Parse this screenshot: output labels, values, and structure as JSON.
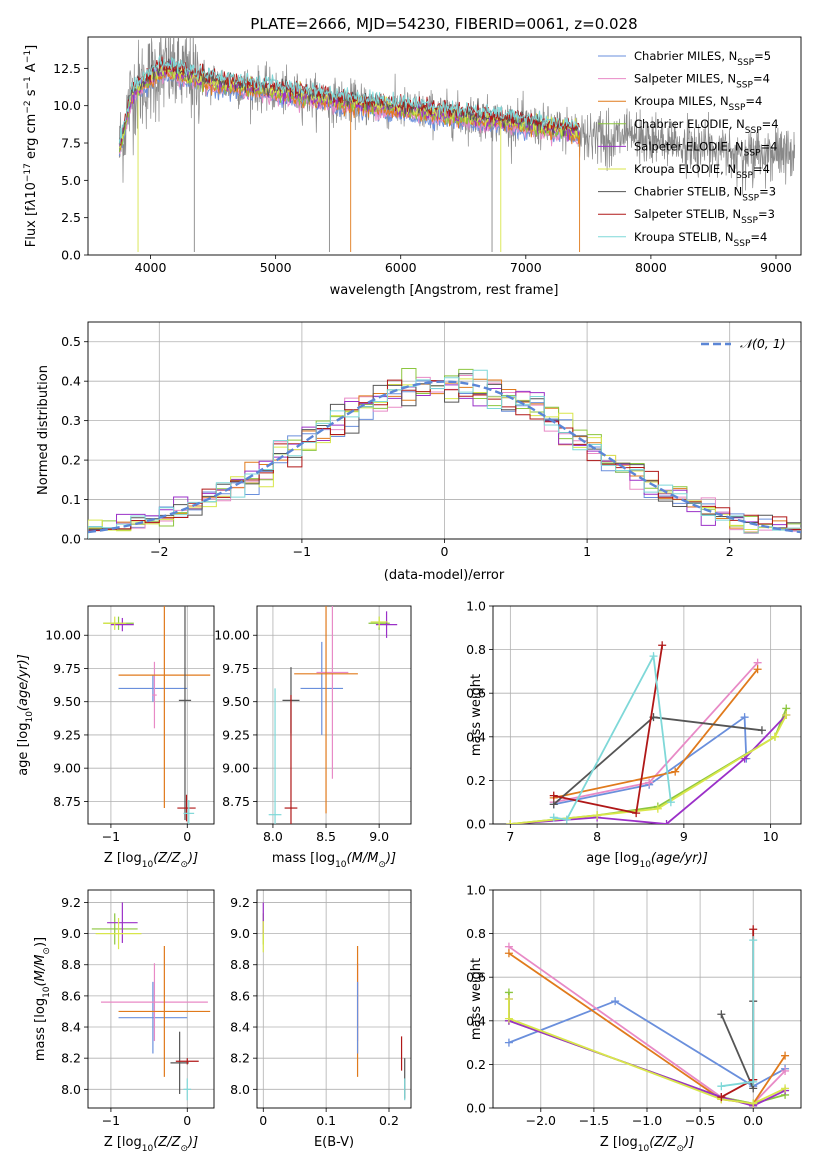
{
  "figure": {
    "title": "PLATE=2666, MJD=54230, FIBERID=0061, z=0.028"
  },
  "series_colors": {
    "Chabrier MILES": "#6a8fdc",
    "Salpeter MILES": "#e88ac6",
    "Kroupa MILES": "#e07a1c",
    "Chabrier ELODIE": "#8cc63f",
    "Salpeter ELODIE": "#9b30c8",
    "Kroupa ELODIE": "#d8e64a",
    "Chabrier STELIB": "#555555",
    "Salpeter STELIB": "#b01818",
    "Kroupa STELIB": "#7fd8d8"
  },
  "chart_data": [
    {
      "id": "spectrum",
      "type": "line",
      "title": "PLATE=2666, MJD=54230, FIBERID=0061, z=0.028",
      "xlabel": "wavelength [Angstrom, rest frame]",
      "ylabel_parts": [
        "Flux [f",
        "λ",
        "10",
        "−17",
        " erg cm",
        "−2",
        " s",
        "−1",
        " A",
        "−1",
        "]"
      ],
      "xlim": [
        3500,
        9200
      ],
      "ylim": [
        0,
        14.6
      ],
      "xticks": [
        4000,
        5000,
        6000,
        7000,
        8000,
        9000
      ],
      "yticks": [
        0.0,
        2.5,
        5.0,
        7.5,
        10.0,
        12.5
      ],
      "grid": false,
      "legend_position": "upper-right",
      "legend": [
        {
          "label": "Chabrier MILES, N",
          "sub": "SSP",
          "suffix": "=5",
          "series": "Chabrier MILES"
        },
        {
          "label": "Salpeter MILES, N",
          "sub": "SSP",
          "suffix": "=4",
          "series": "Salpeter MILES"
        },
        {
          "label": "Kroupa MILES, N",
          "sub": "SSP",
          "suffix": "=4",
          "series": "Kroupa MILES"
        },
        {
          "label": "Chabrier ELODIE, N",
          "sub": "SSP",
          "suffix": "=4",
          "series": "Chabrier ELODIE"
        },
        {
          "label": "Salpeter ELODIE, N",
          "sub": "SSP",
          "suffix": "=4",
          "series": "Salpeter ELODIE"
        },
        {
          "label": "Kroupa ELODIE, N",
          "sub": "SSP",
          "suffix": "=4",
          "series": "Kroupa ELODIE"
        },
        {
          "label": "Chabrier STELIB, N",
          "sub": "SSP",
          "suffix": "=3",
          "series": "Chabrier STELIB"
        },
        {
          "label": "Salpeter STELIB, N",
          "sub": "SSP",
          "suffix": "=3",
          "series": "Salpeter STELIB"
        },
        {
          "label": "Kroupa STELIB, N",
          "sub": "SSP",
          "suffix": "=4",
          "series": "Kroupa STELIB"
        }
      ],
      "continuum": {
        "x": [
          3750,
          3850,
          3950,
          4050,
          4150,
          4300,
          4500,
          4700,
          4900,
          5100,
          5300,
          5500,
          5700,
          5900,
          6100,
          6300,
          6500,
          6700,
          6900,
          7100,
          7300,
          7500,
          7700,
          7900,
          8100,
          8300,
          8500,
          8700,
          8900,
          9150
        ],
        "y": [
          7.0,
          10.8,
          11.5,
          12.2,
          12.4,
          12.0,
          11.6,
          11.3,
          11.1,
          10.8,
          10.6,
          10.3,
          10.1,
          9.9,
          9.7,
          9.5,
          9.3,
          9.1,
          8.9,
          8.6,
          8.4,
          8.1,
          7.9,
          7.7,
          7.5,
          7.3,
          7.1,
          6.9,
          6.8,
          6.7
        ]
      },
      "observed_range": [
        3750,
        9150
      ],
      "model_range": [
        3750,
        7430
      ]
    },
    {
      "id": "residuals",
      "type": "histogram",
      "xlabel": "(data-model)/error",
      "ylabel": "Normed distribution",
      "xlim": [
        -2.5,
        2.5
      ],
      "ylim": [
        0,
        0.55
      ],
      "xticks": [
        -2,
        -1,
        0,
        1,
        2
      ],
      "yticks": [
        0.0,
        0.1,
        0.2,
        0.3,
        0.4,
        0.5
      ],
      "grid": true,
      "legend_position": "upper-right",
      "reference_curve": {
        "name": "𝒩(0, 1)",
        "mean": 0,
        "sigma": 1
      },
      "bin_width": 0.1
    },
    {
      "id": "age_vs_Z",
      "type": "errorbar",
      "xlabel_parts": [
        "Z [log",
        "10",
        "(Z/Z",
        "⊙",
        ")]"
      ],
      "ylabel_parts": [
        "age  [log",
        "10",
        "(age/yr)]"
      ],
      "xlim": [
        -1.3,
        0.35
      ],
      "ylim": [
        8.58,
        10.22
      ],
      "xticks": [
        -1,
        0
      ],
      "yticks": [
        8.75,
        9.0,
        9.25,
        9.5,
        9.75,
        10.0
      ],
      "grid": true,
      "points": [
        {
          "series": "Chabrier MILES",
          "x": -0.45,
          "xerr": 0.45,
          "y": 9.6,
          "yerr": 0.1
        },
        {
          "series": "Salpeter MILES",
          "x": -0.43,
          "xerr": 0.03,
          "y": 9.55,
          "yerr": 0.25
        },
        {
          "series": "Kroupa MILES",
          "x": -0.3,
          "xerr": 0.6,
          "y": 9.7,
          "yerr": 1.0
        },
        {
          "series": "Chabrier ELODIE",
          "x": -0.9,
          "xerr": 0.2,
          "y": 10.09,
          "yerr": 0.05
        },
        {
          "series": "Salpeter ELODIE",
          "x": -0.85,
          "xerr": 0.15,
          "y": 10.08,
          "yerr": 0.05
        },
        {
          "series": "Kroupa ELODIE",
          "x": -0.95,
          "xerr": 0.15,
          "y": 10.09,
          "yerr": 0.05
        },
        {
          "series": "Chabrier STELIB",
          "x": -0.03,
          "xerr": 0.08,
          "y": 9.51,
          "yerr": 0.9
        },
        {
          "series": "Salpeter STELIB",
          "x": -0.01,
          "xerr": 0.12,
          "y": 8.7,
          "yerr": 0.1
        },
        {
          "series": "Kroupa STELIB",
          "x": 0.02,
          "xerr": 0.07,
          "y": 8.66,
          "yerr": 0.1
        }
      ]
    },
    {
      "id": "age_vs_mass",
      "type": "errorbar",
      "xlabel_parts": [
        "mass [log",
        "10",
        "(M/M",
        "⊙",
        ")]"
      ],
      "xlim": [
        7.85,
        9.3
      ],
      "ylim": [
        8.58,
        10.22
      ],
      "xticks": [
        8.0,
        8.5,
        9.0
      ],
      "yticks": [
        8.75,
        9.0,
        9.25,
        9.5,
        9.75,
        10.0
      ],
      "grid": true,
      "points": [
        {
          "series": "Chabrier MILES",
          "x": 8.46,
          "xerr": 0.2,
          "y": 9.6,
          "yerr": 0.35
        },
        {
          "series": "Salpeter MILES",
          "x": 8.56,
          "xerr": 0.15,
          "y": 9.72,
          "yerr": 0.8
        },
        {
          "series": "Kroupa MILES",
          "x": 8.5,
          "xerr": 0.3,
          "y": 9.71,
          "yerr": 1.05
        },
        {
          "series": "Chabrier ELODIE",
          "x": 9.0,
          "xerr": 0.1,
          "y": 10.09,
          "yerr": 0.05
        },
        {
          "series": "Salpeter ELODIE",
          "x": 9.07,
          "xerr": 0.1,
          "y": 10.08,
          "yerr": 0.1
        },
        {
          "series": "Kroupa ELODIE",
          "x": 9.0,
          "xerr": 0.08,
          "y": 10.1,
          "yerr": 0.04
        },
        {
          "series": "Chabrier STELIB",
          "x": 8.17,
          "xerr": 0.08,
          "y": 9.51,
          "yerr": 0.25
        },
        {
          "series": "Salpeter STELIB",
          "x": 8.17,
          "xerr": 0.06,
          "y": 8.7,
          "yerr": 0.85
        },
        {
          "series": "Kroupa STELIB",
          "x": 8.02,
          "xerr": 0.06,
          "y": 8.65,
          "yerr": 0.95
        }
      ]
    },
    {
      "id": "weight_vs_age",
      "type": "line",
      "xlabel_parts": [
        "age  [log",
        "10",
        "(age/yr)]"
      ],
      "ylabel": "mass weight",
      "xlim": [
        6.8,
        10.35
      ],
      "ylim": [
        0,
        1.0
      ],
      "xticks": [
        7,
        8,
        9,
        10
      ],
      "yticks": [
        0.0,
        0.2,
        0.4,
        0.6,
        0.8,
        1.0
      ],
      "grid": true,
      "series": [
        {
          "name": "Chabrier MILES",
          "x": [
            7.5,
            8.6,
            9.7,
            9.72
          ],
          "y": [
            0.09,
            0.18,
            0.49,
            0.3
          ]
        },
        {
          "name": "Salpeter MILES",
          "x": [
            7.5,
            8.6,
            9.85
          ],
          "y": [
            0.1,
            0.19,
            0.74
          ]
        },
        {
          "name": "Kroupa MILES",
          "x": [
            7.5,
            8.9,
            9.85
          ],
          "y": [
            0.12,
            0.24,
            0.71
          ]
        },
        {
          "name": "Chabrier ELODIE",
          "x": [
            7.0,
            8.0,
            8.7,
            10.05,
            10.18
          ],
          "y": [
            0.0,
            0.04,
            0.08,
            0.4,
            0.53
          ]
        },
        {
          "name": "Salpeter ELODIE",
          "x": [
            7.0,
            8.0,
            8.8,
            9.7,
            10.18
          ],
          "y": [
            0.0,
            0.03,
            0.0,
            0.3,
            0.5
          ]
        },
        {
          "name": "Kroupa ELODIE",
          "x": [
            7.0,
            8.0,
            8.7,
            10.05,
            10.18
          ],
          "y": [
            0.0,
            0.04,
            0.07,
            0.4,
            0.5
          ]
        },
        {
          "name": "Chabrier STELIB",
          "x": [
            7.5,
            8.65,
            9.9
          ],
          "y": [
            0.09,
            0.49,
            0.43
          ]
        },
        {
          "name": "Salpeter STELIB",
          "x": [
            7.5,
            8.45,
            8.75
          ],
          "y": [
            0.13,
            0.05,
            0.82
          ]
        },
        {
          "name": "Kroupa STELIB",
          "x": [
            7.5,
            7.65,
            8.65,
            8.85
          ],
          "y": [
            0.03,
            0.02,
            0.77,
            0.1
          ]
        }
      ]
    },
    {
      "id": "mass_vs_Z",
      "type": "errorbar",
      "xlabel_parts": [
        "Z [log",
        "10",
        "(Z/Z",
        "⊙",
        ")]"
      ],
      "ylabel_parts": [
        "mass [log",
        "10",
        "(M/M",
        "⊙",
        ")]"
      ],
      "xlim": [
        -1.3,
        0.35
      ],
      "ylim": [
        7.88,
        9.28
      ],
      "xticks": [
        -1,
        0
      ],
      "yticks": [
        8.0,
        8.2,
        8.4,
        8.6,
        8.8,
        9.0,
        9.2
      ],
      "grid": true,
      "points": [
        {
          "series": "Chabrier MILES",
          "x": -0.45,
          "xerr": 0.45,
          "y": 8.46,
          "yerr": 0.23
        },
        {
          "series": "Salpeter MILES",
          "x": -0.43,
          "xerr": 0.7,
          "y": 8.56,
          "yerr": 0.25
        },
        {
          "series": "Kroupa MILES",
          "x": -0.3,
          "xerr": 0.6,
          "y": 8.5,
          "yerr": 0.42
        },
        {
          "series": "Chabrier ELODIE",
          "x": -0.95,
          "xerr": 0.3,
          "y": 9.03,
          "yerr": 0.1
        },
        {
          "series": "Salpeter ELODIE",
          "x": -0.85,
          "xerr": 0.2,
          "y": 9.07,
          "yerr": 0.13
        },
        {
          "series": "Kroupa ELODIE",
          "x": -0.9,
          "xerr": 0.3,
          "y": 9.0,
          "yerr": 0.1
        },
        {
          "series": "Chabrier STELIB",
          "x": -0.1,
          "xerr": 0.12,
          "y": 8.17,
          "yerr": 0.2
        },
        {
          "series": "Salpeter STELIB",
          "x": 0.0,
          "xerr": 0.15,
          "y": 8.18,
          "yerr": 0.02
        },
        {
          "series": "Kroupa STELIB",
          "x": 0.0,
          "xerr": 0.05,
          "y": 8.0,
          "yerr": 0.07
        }
      ]
    },
    {
      "id": "mass_vs_EBV",
      "type": "errorbar",
      "xlabel": "E(B-V)",
      "xlim": [
        -0.01,
        0.235
      ],
      "ylim": [
        7.88,
        9.28
      ],
      "xticks": [
        0.0,
        0.1,
        0.2
      ],
      "yticks": [
        8.0,
        8.2,
        8.4,
        8.6,
        8.8,
        9.0,
        9.2
      ],
      "grid": true,
      "points": [
        {
          "series": "Chabrier ELODIE",
          "x": 0.0,
          "xerr": 0.0,
          "y": 9.03,
          "yerr": 0.1
        },
        {
          "series": "Salpeter ELODIE",
          "x": 0.0,
          "xerr": 0.0,
          "y": 9.1,
          "yerr": 0.1
        },
        {
          "series": "Kroupa ELODIE",
          "x": 0.0,
          "xerr": 0.0,
          "y": 8.98,
          "yerr": 0.1
        },
        {
          "series": "Salpeter MILES",
          "x": 0.15,
          "xerr": 0.0,
          "y": 8.56,
          "yerr": 0.25
        },
        {
          "series": "Kroupa MILES",
          "x": 0.15,
          "xerr": 0.0,
          "y": 8.5,
          "yerr": 0.42
        },
        {
          "series": "Chabrier MILES",
          "x": 0.15,
          "xerr": 0.0,
          "y": 8.46,
          "yerr": 0.23
        },
        {
          "series": "Salpeter STELIB",
          "x": 0.22,
          "xerr": 0.0,
          "y": 8.23,
          "yerr": 0.11
        },
        {
          "series": "Chabrier STELIB",
          "x": 0.225,
          "xerr": 0.0,
          "y": 8.07,
          "yerr": 0.13
        },
        {
          "series": "Kroupa STELIB",
          "x": 0.225,
          "xerr": 0.0,
          "y": 8.0,
          "yerr": 0.07
        }
      ]
    },
    {
      "id": "weight_vs_Z",
      "type": "line",
      "xlabel_parts": [
        "Z [log",
        "10",
        "(Z/Z",
        "⊙",
        ")]"
      ],
      "ylabel": "mass weight",
      "xlim": [
        -2.45,
        0.45
      ],
      "ylim": [
        0,
        1.0
      ],
      "xticks": [
        -2.0,
        -1.5,
        -1.0,
        -0.5,
        0.0
      ],
      "yticks": [
        0.0,
        0.2,
        0.4,
        0.6,
        0.8,
        1.0
      ],
      "grid": true,
      "series": [
        {
          "name": "Chabrier MILES",
          "x": [
            -2.3,
            -1.3,
            0.0,
            0.3
          ],
          "y": [
            0.3,
            0.49,
            0.1,
            0.18
          ]
        },
        {
          "name": "Salpeter MILES",
          "x": [
            -2.3,
            -0.3,
            0.0,
            0.3
          ],
          "y": [
            0.74,
            0.05,
            0.02,
            0.17
          ]
        },
        {
          "name": "Kroupa MILES",
          "x": [
            -2.3,
            -0.3,
            0.0,
            0.3
          ],
          "y": [
            0.71,
            0.04,
            0.02,
            0.24
          ]
        },
        {
          "name": "Chabrier ELODIE",
          "x": [
            -2.3,
            -2.3,
            -0.3,
            0.0,
            0.3
          ],
          "y": [
            0.53,
            0.4,
            0.05,
            0.02,
            0.06
          ]
        },
        {
          "name": "Salpeter ELODIE",
          "x": [
            -2.3,
            -2.3,
            -0.3,
            0.0,
            0.3
          ],
          "y": [
            0.5,
            0.4,
            0.05,
            0.01,
            0.08
          ]
        },
        {
          "name": "Kroupa ELODIE",
          "x": [
            -2.3,
            -2.3,
            -0.3,
            0.0,
            0.3
          ],
          "y": [
            0.5,
            0.41,
            0.04,
            0.02,
            0.09
          ]
        },
        {
          "name": "Chabrier STELIB",
          "x": [
            -0.3,
            0.0,
            0.0,
            0.0
          ],
          "y": [
            0.43,
            0.09,
            0.49,
            0.13
          ]
        },
        {
          "name": "Salpeter STELIB",
          "x": [
            -0.3,
            0.0,
            0.0
          ],
          "y": [
            0.05,
            0.13,
            0.82
          ]
        },
        {
          "name": "Kroupa STELIB",
          "x": [
            -0.3,
            0.0,
            0.0
          ],
          "y": [
            0.1,
            0.12,
            0.77
          ]
        }
      ]
    }
  ]
}
